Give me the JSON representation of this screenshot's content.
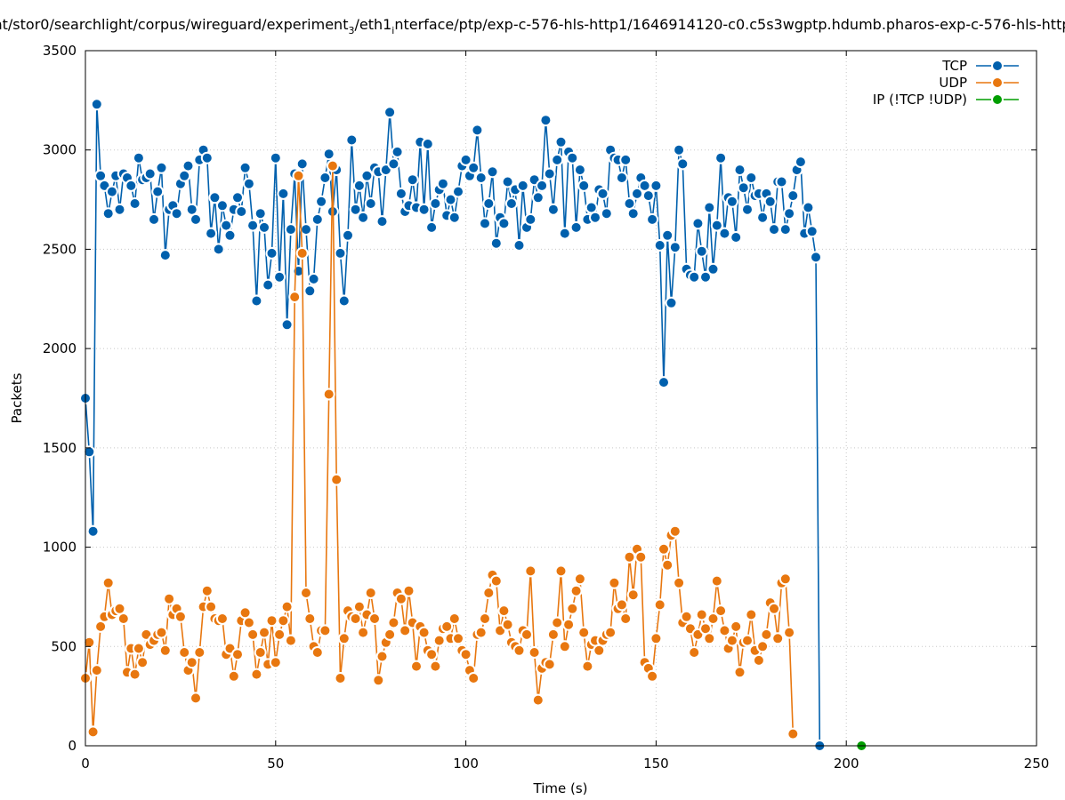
{
  "chart_data": {
    "type": "line",
    "title": "nt/stor0/searchlight/corpus/wireguard/experiment_3/eth1_interface/ptp/exp-c-576-hls-http1/1646914120-c0.c5s3wgptp.hdumb.pharos-exp-c-576-hls-http",
    "title_parts": {
      "p1": "nt/stor0/searchlight/corpus/wireguard/experiment",
      "s1": "3",
      "p2": "/eth1",
      "s2": "i",
      "p3": "nterface/ptp/exp-c-576-hls-http1/1646914120-c0.c5s3wgptp.hdumb.pharos-exp-c-576-hls-http"
    },
    "xlabel": "Time (s)",
    "ylabel": "Packets",
    "xlim": [
      0,
      250
    ],
    "ylim": [
      0,
      3500
    ],
    "xticks": [
      "0",
      "50",
      "100",
      "150",
      "200",
      "250"
    ],
    "yticks": [
      "0",
      "500",
      "1000",
      "1500",
      "2000",
      "2500",
      "3000",
      "3500"
    ],
    "grid": true,
    "legend_position": "top-right",
    "series": [
      {
        "name": "TCP",
        "color": "#0060ad",
        "values": [
          1750,
          1480,
          1080,
          3230,
          2870,
          2820,
          2680,
          2790,
          2870,
          2700,
          2880,
          2860,
          2820,
          2730,
          2960,
          2850,
          2860,
          2880,
          2650,
          2790,
          2910,
          2470,
          2700,
          2720,
          2680,
          2830,
          2870,
          2920,
          2700,
          2650,
          2950,
          3000,
          2960,
          2580,
          2760,
          2500,
          2720,
          2620,
          2570,
          2700,
          2760,
          2690,
          2910,
          2830,
          2620,
          2240,
          2680,
          2610,
          2320,
          2480,
          2960,
          2360,
          2780,
          2120,
          2600,
          2880,
          2390,
          2930,
          2600,
          2290,
          2350,
          2650,
          2740,
          2860,
          2980,
          2690,
          2900,
          2480,
          2240,
          2570,
          3050,
          2700,
          2820,
          2660,
          2870,
          2730,
          2910,
          2890,
          2640,
          2900,
          3190,
          2930,
          2990,
          2780,
          2690,
          2720,
          2850,
          2710,
          3040,
          2700,
          3030,
          2610,
          2730,
          2800,
          2830,
          2670,
          2750,
          2660,
          2790,
          2920,
          2950,
          2870,
          2910,
          3100,
          2860,
          2630,
          2730,
          2890,
          2530,
          2660,
          2630,
          2840,
          2730,
          2800,
          2520,
          2820,
          2610,
          2650,
          2850,
          2760,
          2820,
          3150,
          2880,
          2700,
          2950,
          3040,
          2580,
          2990,
          2960,
          2610,
          2900,
          2820,
          2650,
          2710,
          2660,
          2800,
          2780,
          2680,
          3000,
          2960,
          2950,
          2860,
          2950,
          2730,
          2680,
          2780,
          2860,
          2820,
          2770,
          2650,
          2820,
          2520,
          1830,
          2570,
          2230,
          2510,
          3000,
          2930,
          2400,
          2370,
          2360,
          2630,
          2490,
          2360,
          2710,
          2400,
          2620,
          2960,
          2580,
          2760,
          2740,
          2560,
          2900,
          2810,
          2700,
          2860,
          2770,
          2780,
          2660,
          2780,
          2740,
          2600,
          2840,
          2840,
          2600,
          2680,
          2770,
          2900,
          2940,
          2580,
          2710,
          2590,
          2460,
          0
        ]
      },
      {
        "name": "UDP",
        "color": "#e8770f",
        "values": [
          340,
          520,
          70,
          380,
          600,
          650,
          820,
          660,
          680,
          690,
          640,
          370,
          490,
          360,
          490,
          420,
          560,
          510,
          530,
          560,
          570,
          480,
          740,
          660,
          690,
          650,
          470,
          380,
          420,
          240,
          470,
          700,
          780,
          700,
          640,
          630,
          640,
          460,
          490,
          350,
          460,
          630,
          670,
          620,
          560,
          360,
          470,
          570,
          410,
          630,
          420,
          560,
          630,
          700,
          530,
          2260,
          2870,
          2480,
          770,
          640,
          500,
          470,
          580,
          580,
          1770,
          2920,
          1340,
          340,
          540,
          680,
          650,
          640,
          700,
          570,
          660,
          770,
          640,
          330,
          450,
          520,
          560,
          620,
          770,
          740,
          580,
          780,
          620,
          400,
          600,
          570,
          480,
          460,
          400,
          530,
          590,
          600,
          540,
          640,
          540,
          480,
          460,
          380,
          340,
          560,
          570,
          640,
          770,
          860,
          830,
          580,
          680,
          610,
          520,
          500,
          480,
          580,
          560,
          880,
          470,
          230,
          390,
          420,
          410,
          560,
          620,
          880,
          500,
          610,
          690,
          780,
          840,
          570,
          400,
          510,
          530,
          480,
          530,
          560,
          570,
          820,
          690,
          710,
          640,
          950,
          760,
          990,
          950,
          420,
          390,
          350,
          540,
          710,
          990,
          910,
          1060,
          1080,
          820,
          620,
          650,
          590,
          470,
          560,
          660,
          590,
          540,
          640,
          830,
          680,
          580,
          490,
          530,
          600,
          370,
          520,
          530,
          660,
          480,
          430,
          500,
          560,
          720,
          690,
          540,
          820,
          840,
          570,
          60
        ]
      },
      {
        "name": "IP (!TCP  !UDP)",
        "color": "#009e00",
        "values": [
          0
        ]
      }
    ],
    "series_x": {
      "TCP": {
        "start": 0,
        "step": 1.0
      },
      "UDP": {
        "start": 0,
        "step": 1.0
      },
      "IP (!TCP  !UDP)": {
        "start": 204,
        "step": 1.0
      }
    }
  }
}
